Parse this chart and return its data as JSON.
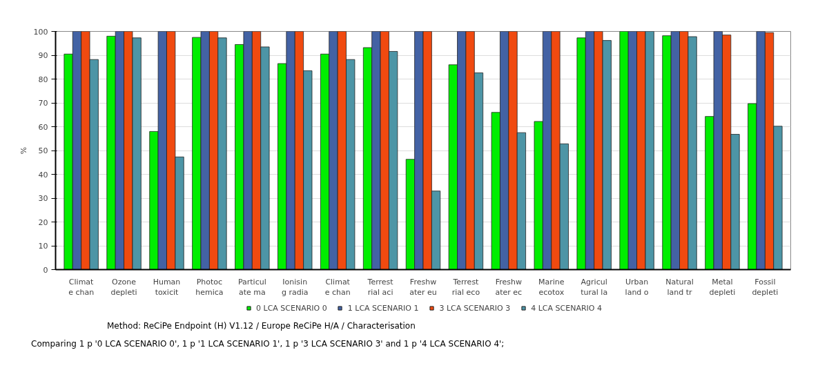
{
  "chart_data": {
    "type": "bar",
    "ylabel": "%",
    "categories": [
      "Climat\ne chan",
      "Ozone\ndepleti",
      "Human\ntoxicit",
      "Photoc\nhemica",
      "Particul\nate ma",
      "Ionisin\ng radia",
      "Climat\ne chan",
      "Terrest\nrial aci",
      "Freshw\nater eu",
      "Terrest\nrial eco",
      "Freshw\nater ec",
      "Marine\necotox",
      "Agricul\ntural la",
      "Urban\nland o",
      "Natural\nland tr",
      "Metal\ndepleti",
      "Fossil\ndepleti"
    ],
    "series": [
      {
        "name": "0 LCA SCENARIO 0",
        "color": "#00ee00",
        "values": [
          90.5,
          98,
          58,
          97.5,
          94.5,
          86.5,
          90.5,
          93.2,
          46.3,
          86,
          66,
          62.2,
          97.3,
          100,
          98.2,
          64.3,
          69.7
        ]
      },
      {
        "name": "1 LCA SCENARIO 1",
        "color": "#4362a4",
        "values": [
          100,
          100,
          100,
          100,
          100,
          100,
          100,
          100,
          100,
          100,
          100,
          100,
          100,
          100,
          100,
          100,
          100
        ]
      },
      {
        "name": "3 LCA SCENARIO 3",
        "color": "#f04a10",
        "values": [
          100,
          100,
          100,
          100,
          100,
          100,
          100,
          100,
          100,
          100,
          100,
          100,
          100,
          100,
          100,
          98.5,
          99.5
        ]
      },
      {
        "name": "4 LCA SCENARIO 4",
        "color": "#4d95a6",
        "values": [
          88.2,
          97.3,
          47.3,
          97.3,
          93.5,
          83.5,
          88.2,
          91.6,
          33,
          82.6,
          57.5,
          52.8,
          96.2,
          100,
          97.8,
          56.8,
          60.2
        ]
      }
    ],
    "ylim": [
      0,
      100
    ],
    "yticks": [
      0,
      10,
      20,
      30,
      40,
      50,
      60,
      70,
      80,
      90,
      100
    ],
    "grid": "y",
    "legend": "bottom",
    "annotations": [
      "Method: ReCiPe Endpoint (H) V1.12 / Europe ReCiPe H/A / Characterisation",
      "Comparing 1 p '0 LCA SCENARIO 0', 1 p '1 LCA SCENARIO 1', 1 p '3 LCA SCENARIO 3' and 1 p '4 LCA SCENARIO 4';"
    ]
  }
}
